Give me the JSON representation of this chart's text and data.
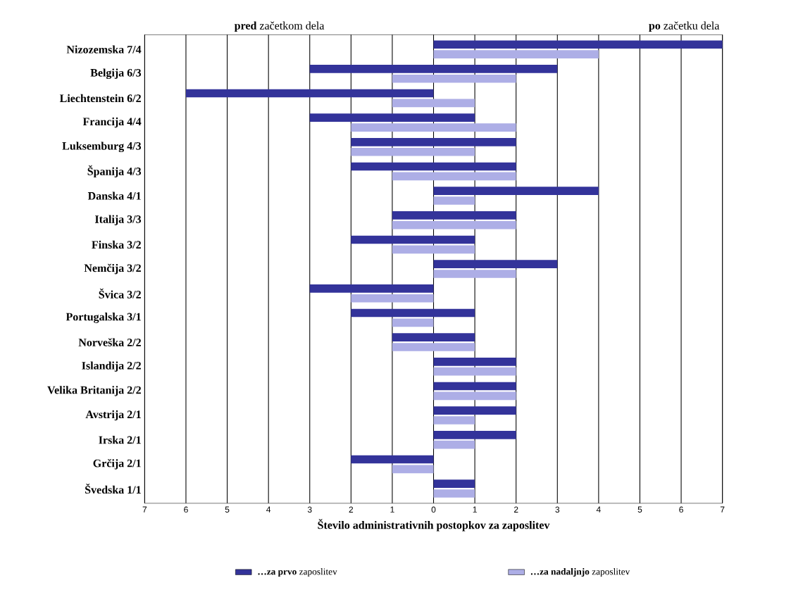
{
  "chart_data": {
    "type": "bar",
    "orientation": "horizontal",
    "xlabel": "Število administrativnih postopkov za zaposlitev",
    "annotations": [
      "**pred** začetkom dela",
      "**po** začetku dela"
    ],
    "categories": [
      "Nizozemska 7/4",
      "Belgija 6/3",
      "Liechtenstein 6/2",
      "Francija 4/4",
      "Luksemburg 4/3",
      "Španija 4/3",
      "Danska 4/1",
      "Italija 3/3",
      "Finska 3/2",
      "Nemčija 3/2",
      "Švica 3/2",
      "Portugalska 3/1",
      "Norveška 2/2",
      "Islandija 2/2",
      "Velika Britanija 2/2",
      "Avstrija 2/1",
      "Irska 2/1",
      "Grčija 2/1",
      "Švedska 1/1"
    ],
    "series": [
      {
        "name": "**…za prvo** zaposlitev",
        "color": "#33339a",
        "base": [
          0,
          -3,
          -6,
          -3,
          -2,
          -2,
          0,
          -1,
          -2,
          0,
          -3,
          -2,
          -1,
          0,
          0,
          0,
          0,
          -2,
          0
        ],
        "values": [
          7,
          6,
          6,
          4,
          4,
          4,
          4,
          3,
          3,
          3,
          3,
          3,
          2,
          2,
          2,
          2,
          2,
          2,
          1
        ]
      },
      {
        "name": "**…za nadaljnjo** zaposlitev",
        "color": "#adaee6",
        "base": [
          0,
          -1,
          -1,
          -2,
          -2,
          -1,
          0,
          -1,
          -1,
          0,
          -2,
          -1,
          -1,
          0,
          0,
          0,
          0,
          -1,
          0
        ],
        "values": [
          4,
          3,
          2,
          4,
          3,
          3,
          1,
          3,
          2,
          2,
          2,
          1,
          2,
          2,
          2,
          1,
          1,
          1,
          1
        ]
      }
    ],
    "xlim": [
      -7,
      7
    ],
    "xticks": [
      {
        "value": -7,
        "label": "7"
      },
      {
        "value": -6,
        "label": "6"
      },
      {
        "value": -5,
        "label": "5"
      },
      {
        "value": -4,
        "label": "4"
      },
      {
        "value": -3,
        "label": "3"
      },
      {
        "value": -2,
        "label": "2"
      },
      {
        "value": -1,
        "label": "1"
      },
      0,
      1,
      2,
      3,
      4,
      5,
      6,
      7
    ],
    "grid": "x",
    "legend": "bottom"
  }
}
